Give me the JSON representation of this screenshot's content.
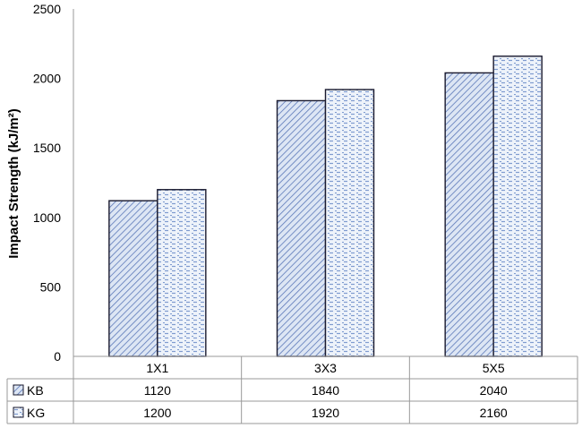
{
  "chart_data": {
    "type": "bar",
    "categories": [
      "1X1",
      "3X3",
      "5X5"
    ],
    "series": [
      {
        "name": "KB",
        "values": [
          1120,
          1840,
          2040
        ],
        "pattern": "diagonal-hatch",
        "color": "#5b78b8",
        "fill": "#dde6f4"
      },
      {
        "name": "KG",
        "values": [
          1200,
          1920,
          2160
        ],
        "pattern": "dashed-horizontal",
        "color": "#5b78b8",
        "fill": "#eef3fa"
      }
    ],
    "ylabel": "Impact Strength (kJ/m²)",
    "xlabel": "",
    "ylim": [
      0,
      2500
    ],
    "yticks": [
      "0",
      "500",
      "1000",
      "1500",
      "2000",
      "2500"
    ],
    "grid": false,
    "legend": "data-table"
  }
}
